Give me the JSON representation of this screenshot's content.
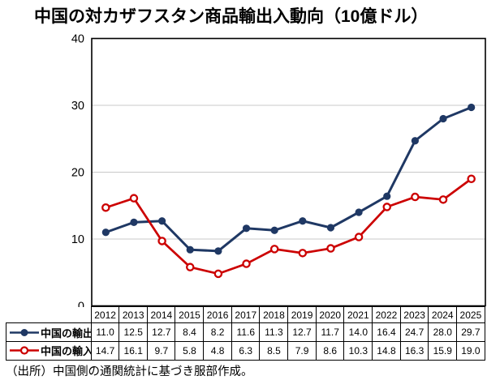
{
  "title": "中国の対カザフスタン商品輸出入動向（10億ドル）",
  "source_note": "（出所）中国側の通関統計に基づき服部作成。",
  "colors": {
    "axis": "#000000",
    "grid": "#c8c8c8",
    "background": "#ffffff"
  },
  "chart_data": {
    "type": "line",
    "title": "中国の対カザフスタン商品輸出入動向（10億ドル）",
    "categories": [
      "2012",
      "2013",
      "2014",
      "2015",
      "2016",
      "2017",
      "2018",
      "2019",
      "2020",
      "2021",
      "2022",
      "2023",
      "2024",
      "2025"
    ],
    "series": [
      {
        "name": "中国の輸出",
        "color": "#1f3864",
        "marker": "filled-circle",
        "values": [
          11.0,
          12.5,
          12.7,
          8.4,
          8.2,
          11.6,
          11.3,
          12.7,
          11.7,
          14.0,
          16.4,
          24.7,
          28.0,
          29.7
        ]
      },
      {
        "name": "中国の輸入",
        "color": "#cc0000",
        "marker": "open-circle",
        "values": [
          14.7,
          16.1,
          9.7,
          5.8,
          4.8,
          6.3,
          8.5,
          7.9,
          8.6,
          10.3,
          14.8,
          16.3,
          15.9,
          19.0
        ]
      }
    ],
    "xlabel": "",
    "ylabel": "",
    "ylim": [
      0,
      40
    ],
    "yticks": [
      0,
      10,
      20,
      30,
      40
    ],
    "grid": true,
    "legend_position": "table-left-column"
  }
}
